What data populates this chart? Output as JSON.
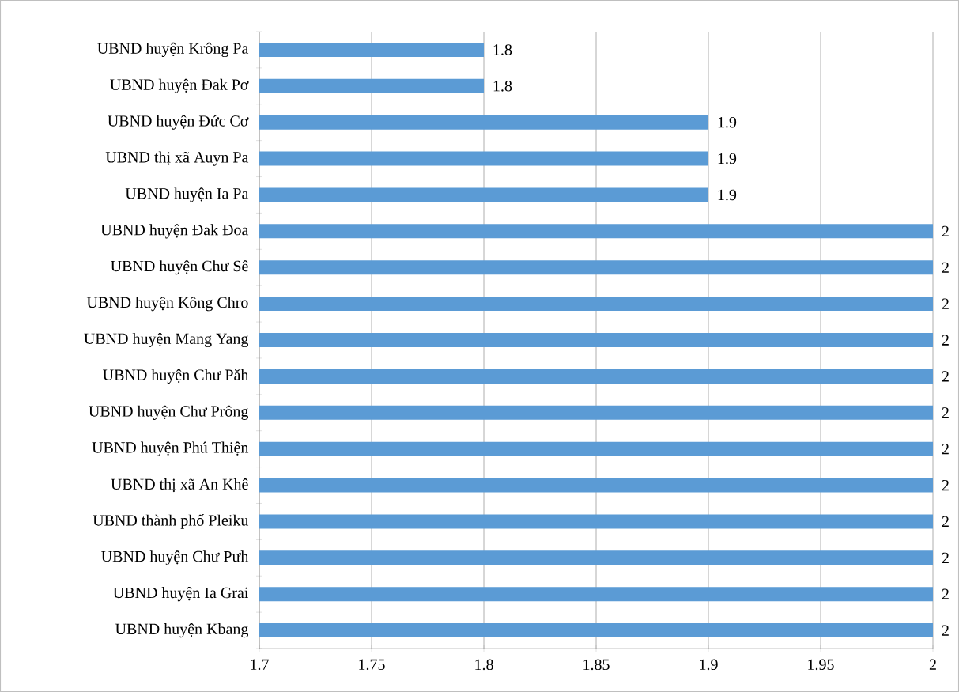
{
  "chart_data": {
    "type": "bar",
    "orientation": "horizontal",
    "categories": [
      "UBND huyện Krông Pa",
      "UBND huyện Đak Pơ",
      "UBND huyện Đức Cơ",
      "UBND thị xã Auyn Pa",
      "UBND huyện Ia Pa",
      "UBND huyện Đak Đoa",
      "UBND huyện Chư Sê",
      "UBND huyện Kông Chro",
      "UBND huyện Mang Yang",
      "UBND huyện Chư Păh",
      "UBND huyện Chư Prông",
      "UBND huyện Phú Thiện",
      "UBND thị xã An Khê",
      "UBND thành phố Pleiku",
      "UBND huyện Chư Pưh",
      "UBND huyện Ia Grai",
      "UBND huyện Kbang"
    ],
    "values": [
      1.8,
      1.8,
      1.9,
      1.9,
      1.9,
      2,
      2,
      2,
      2,
      2,
      2,
      2,
      2,
      2,
      2,
      2,
      2
    ],
    "color": "#5b9bd5",
    "xlim": [
      1.7,
      2
    ],
    "xticks": [
      1.7,
      1.75,
      1.8,
      1.85,
      1.9,
      1.95,
      2
    ],
    "grid": "x",
    "data_labels": true
  }
}
